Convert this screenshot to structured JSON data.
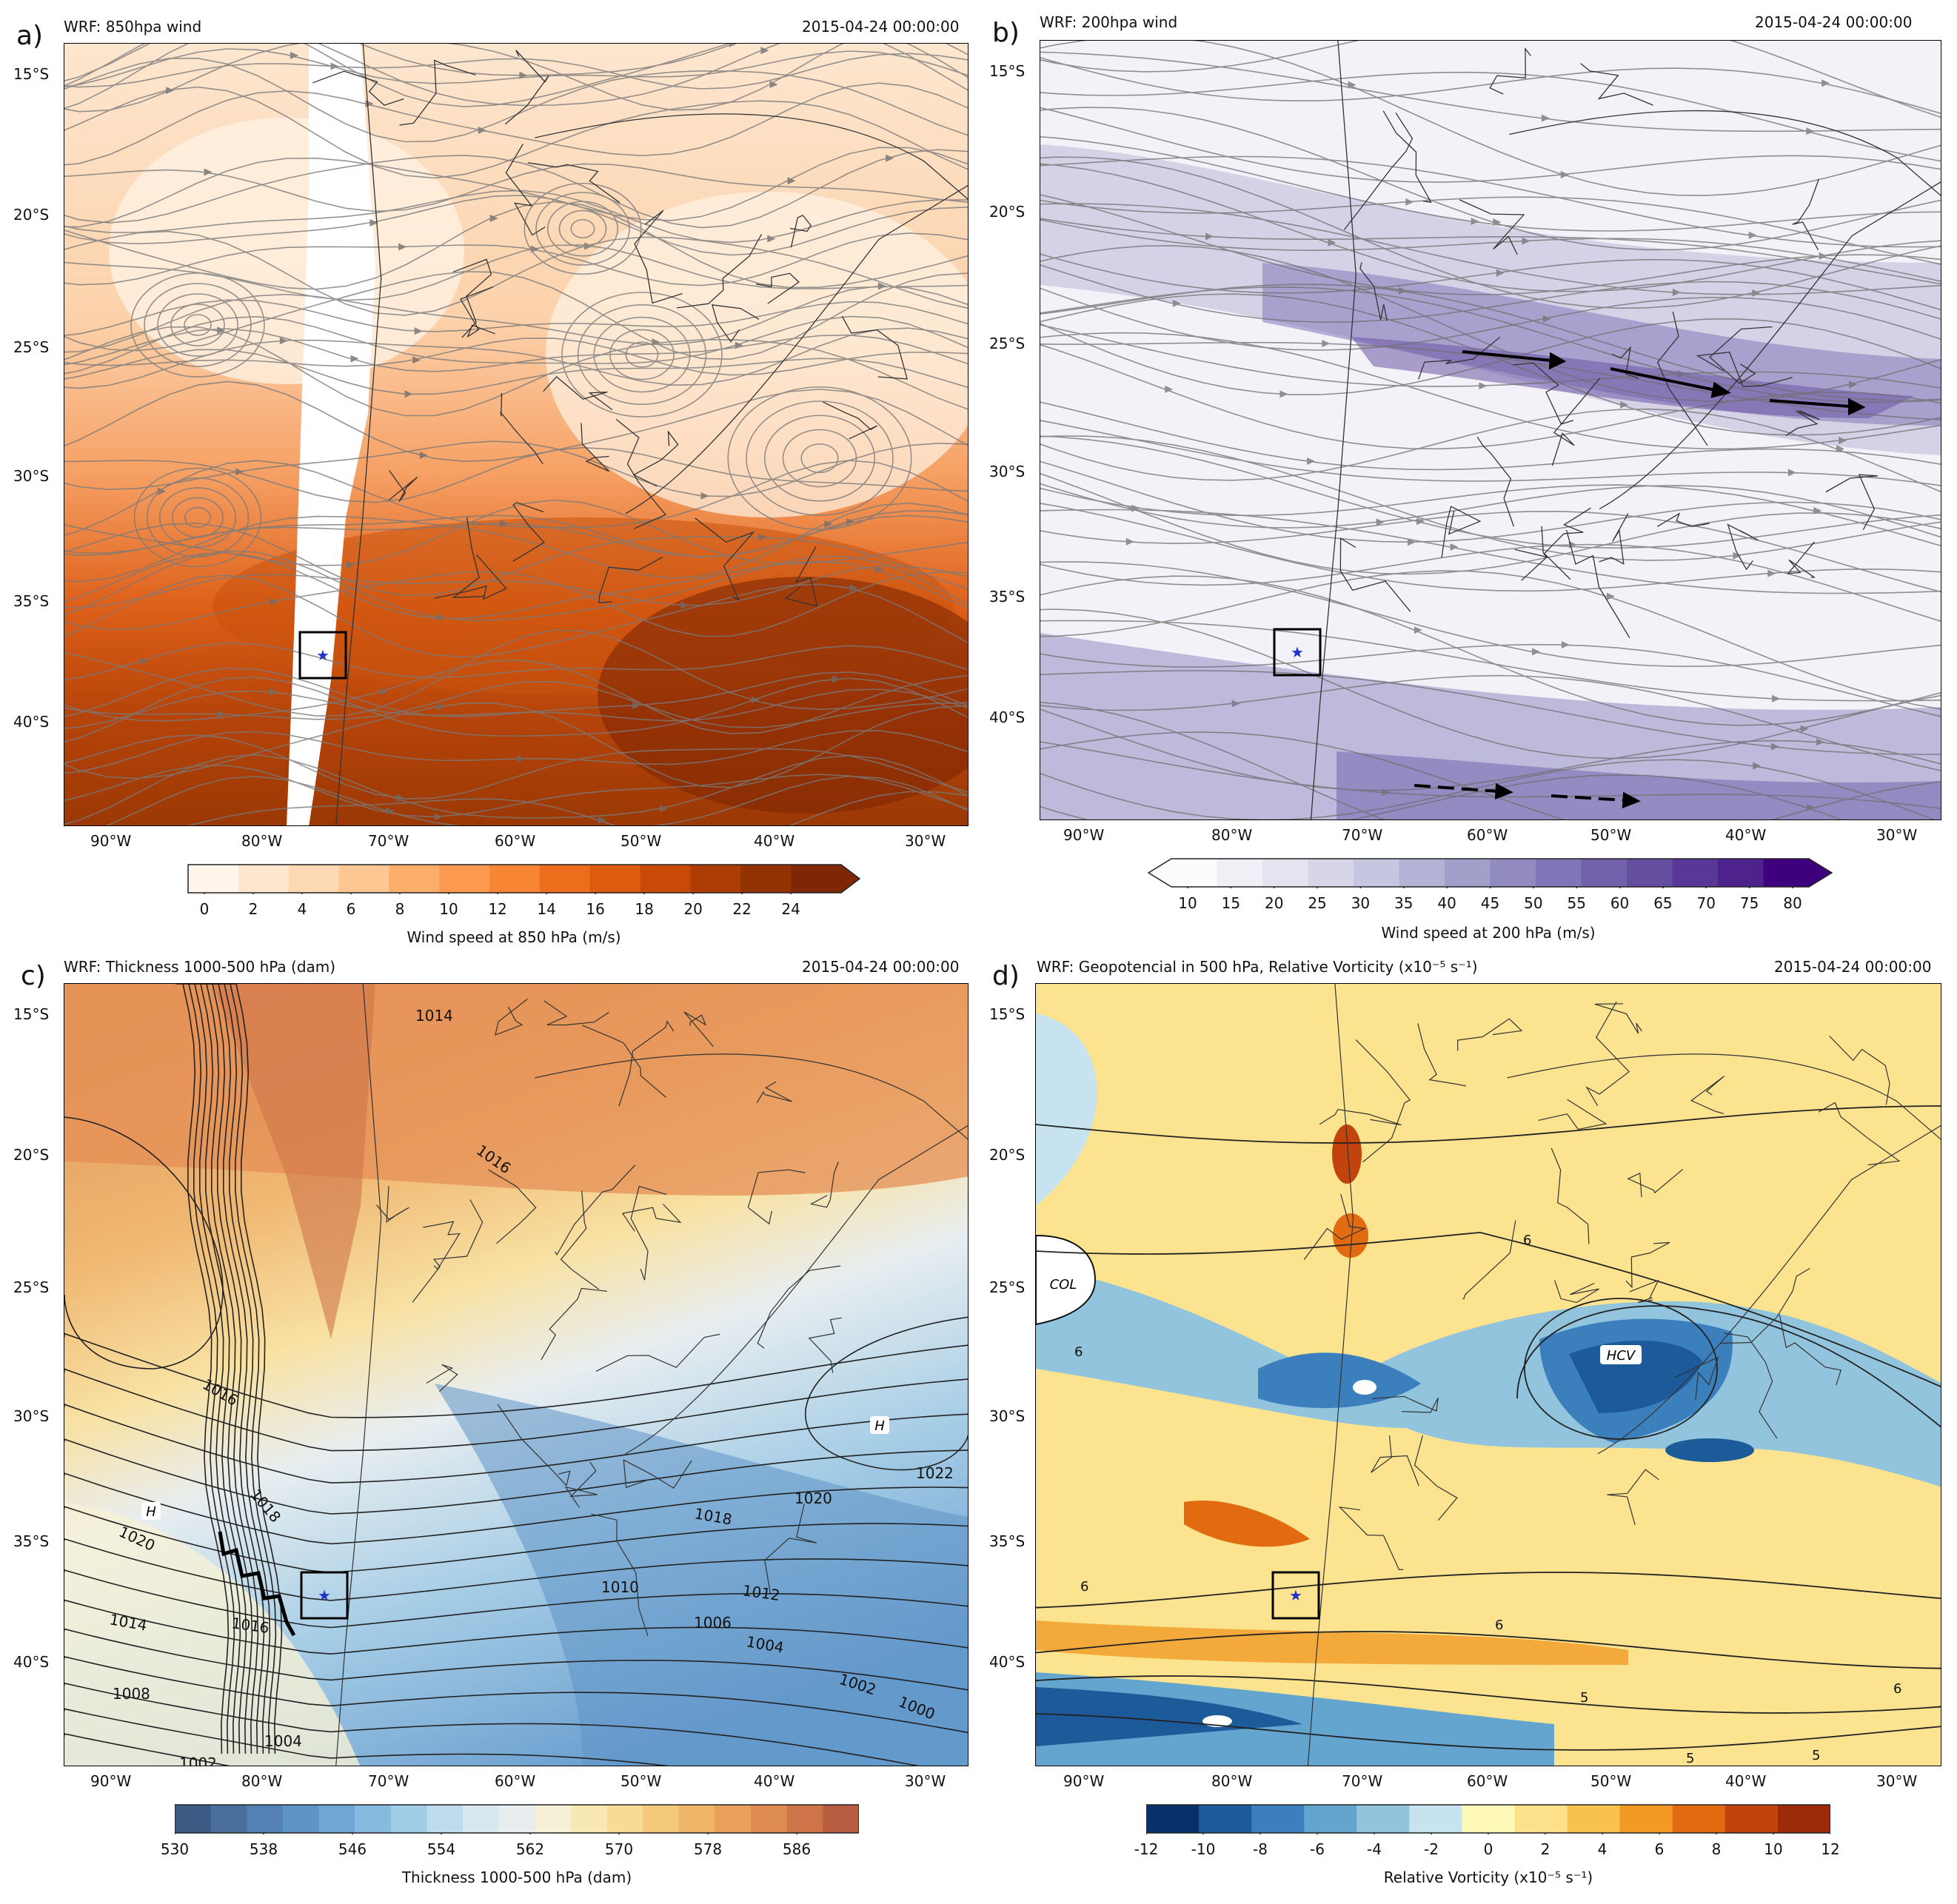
{
  "panels": [
    {
      "id": "a",
      "letter": "a)",
      "title": "WRF: 850hpa wind",
      "time": "2015-04-24 00:00:00",
      "lat_labels": [
        "15°S",
        "20°S",
        "25°S",
        "30°S",
        "35°S",
        "40°S"
      ],
      "lon_labels": [
        "90°W",
        "80°W",
        "70°W",
        "60°W",
        "50°W",
        "40°W",
        "30°W"
      ],
      "colorbar": {
        "label": "Wind speed at 850 hPa (m/s)",
        "ticks": [
          "0",
          "2",
          "4",
          "6",
          "8",
          "10",
          "12",
          "14",
          "16",
          "18",
          "20",
          "22",
          "24"
        ],
        "colors": [
          "#fff5eb",
          "#fee6ce",
          "#fdd9b4",
          "#fdc692",
          "#fdae6b",
          "#fd9a4f",
          "#f88434",
          "#ec6d1c",
          "#dd5a0f",
          "#c94a06",
          "#ad3d03",
          "#923203",
          "#7f2704"
        ],
        "extend": "max"
      }
    },
    {
      "id": "b",
      "letter": "b)",
      "title": "WRF: 200hpa wind",
      "time": "2015-04-24 00:00:00",
      "lat_labels": [
        "15°S",
        "20°S",
        "25°S",
        "30°S",
        "35°S",
        "40°S"
      ],
      "lon_labels": [
        "90°W",
        "80°W",
        "70°W",
        "60°W",
        "50°W",
        "40°W",
        "30°W"
      ],
      "colorbar": {
        "label": "Wind speed at 200 hPa (m/s)",
        "ticks": [
          "10",
          "15",
          "20",
          "25",
          "30",
          "35",
          "40",
          "45",
          "50",
          "55",
          "60",
          "65",
          "70",
          "75",
          "80"
        ],
        "colors": [
          "#fcfbfd",
          "#f1eff6",
          "#e5e3f0",
          "#d7d6e9",
          "#c6c6e1",
          "#b4b3d6",
          "#a29fcb",
          "#918bc0",
          "#8075b6",
          "#7261ab",
          "#654da0",
          "#593797",
          "#4d228d",
          "#3f007d"
        ],
        "extend": "both"
      }
    },
    {
      "id": "c",
      "letter": "c)",
      "title": "WRF: Thickness 1000-500 hPa (dam)",
      "time": "2015-04-24 00:00:00",
      "lat_labels": [
        "15°S",
        "20°S",
        "25°S",
        "30°S",
        "35°S",
        "40°S"
      ],
      "lon_labels": [
        "90°W",
        "80°W",
        "70°W",
        "60°W",
        "50°W",
        "40°W",
        "30°W"
      ],
      "colorbar": {
        "label": "Thickness 1000-500 hPa (dam)",
        "ticks": [
          "530",
          "538",
          "546",
          "554",
          "562",
          "570",
          "578",
          "586"
        ],
        "colors": [
          "#3b5b85",
          "#4a6f9c",
          "#5481b4",
          "#5e93c6",
          "#6fa7d4",
          "#86bbdf",
          "#a1cce6",
          "#bddbea",
          "#d6e7ef",
          "#e8eef0",
          "#f6f1d6",
          "#f8e9b4",
          "#f8dc94",
          "#f4c97a",
          "#efb566",
          "#e8a05a",
          "#de8b51",
          "#cf7449",
          "#b85c42"
        ],
        "extend": "neither",
        "contour_labels": [
          "1014",
          "1016",
          "1018",
          "1020",
          "1022",
          "1010",
          "1012",
          "1006",
          "1004",
          "1002",
          "1000",
          "1008",
          "H"
        ]
      }
    },
    {
      "id": "d",
      "letter": "d)",
      "title": "WRF: Geopotencial in 500 hPa, Relative Vorticity (x10⁻⁵ s⁻¹)",
      "time": "2015-04-24 00:00:00",
      "lat_labels": [
        "15°S",
        "20°S",
        "25°S",
        "30°S",
        "35°S",
        "40°S"
      ],
      "lon_labels": [
        "90°W",
        "80°W",
        "70°W",
        "60°W",
        "50°W",
        "40°W",
        "30°W"
      ],
      "colorbar": {
        "label": "Relative Vorticity (x10⁻⁵ s⁻¹)",
        "ticks": [
          "-12",
          "-10",
          "-8",
          "-6",
          "-4",
          "-2",
          "0",
          "2",
          "4",
          "6",
          "8",
          "10",
          "12"
        ],
        "colors": [
          "#08306b",
          "#1c5a99",
          "#3b80bd",
          "#63a5cf",
          "#92c5dd",
          "#c6e3ef",
          "#fdf7b8",
          "#fde08a",
          "#f9c24d",
          "#f29a25",
          "#e26a10",
          "#c2430b",
          "#9c2b0c"
        ],
        "extend": "neither",
        "annotations": [
          "COL",
          "HCV",
          "6",
          "5"
        ]
      }
    }
  ],
  "chart_data": [
    {
      "type": "heatmap",
      "title": "WRF: 850hpa wind",
      "variable": "Wind speed at 850 hPa (m/s)",
      "range": [
        0,
        24
      ],
      "overlay": "streamlines",
      "lat_range": [
        "15°S",
        "40°S"
      ],
      "lon_range": [
        "90°W",
        "30°W"
      ]
    },
    {
      "type": "heatmap",
      "title": "WRF: 200hpa wind",
      "variable": "Wind speed at 200 hPa (m/s)",
      "range": [
        10,
        80
      ],
      "overlay": "streamlines",
      "lat_range": [
        "15°S",
        "40°S"
      ],
      "lon_range": [
        "90°W",
        "30°W"
      ]
    },
    {
      "type": "heatmap",
      "title": "WRF: Thickness 1000-500 hPa (dam)",
      "variable": "Thickness 1000-500 hPa (dam)",
      "range": [
        530,
        590
      ],
      "overlay": "contours",
      "lat_range": [
        "15°S",
        "40°S"
      ],
      "lon_range": [
        "90°W",
        "30°W"
      ]
    },
    {
      "type": "heatmap",
      "title": "WRF: Geopotencial in 500 hPa, Relative Vorticity (x10⁻⁵ s⁻¹)",
      "variable": "Relative Vorticity (x10⁻⁵ s⁻¹)",
      "range": [
        -12,
        12
      ],
      "overlay": "contours",
      "lat_range": [
        "15°S",
        "40°S"
      ],
      "lon_range": [
        "90°W",
        "30°W"
      ]
    }
  ]
}
